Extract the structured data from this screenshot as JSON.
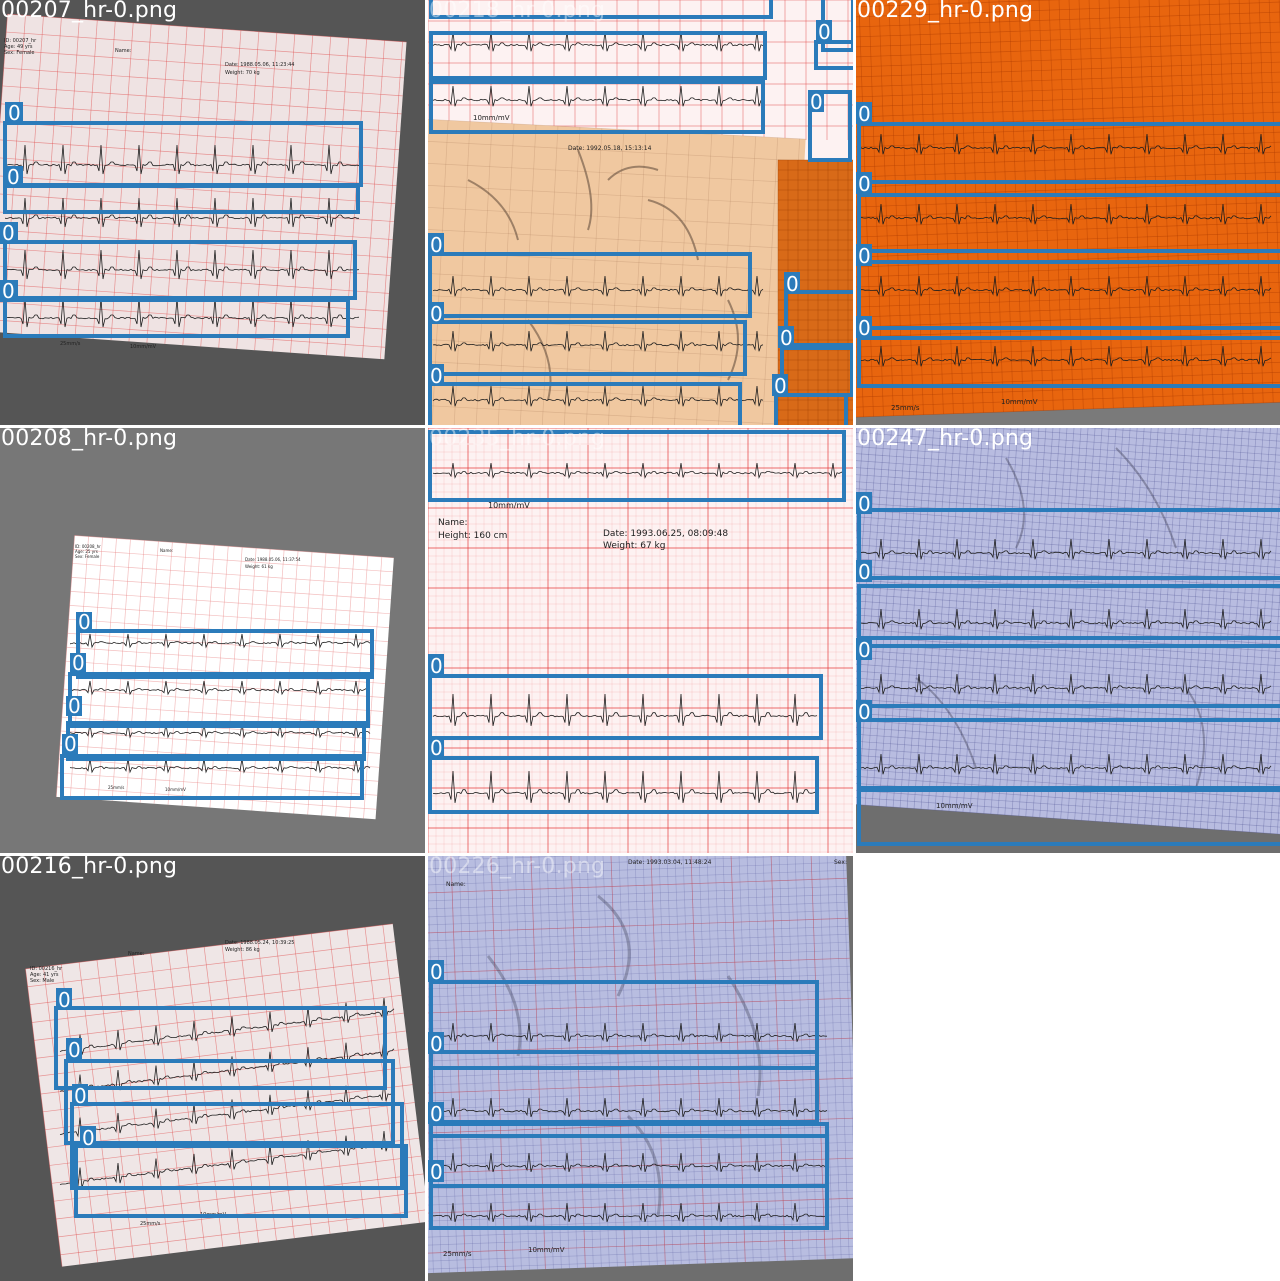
{
  "tiles": [
    {
      "filename": "00207_hr-0.png",
      "header": [
        "ID: 00207_hr",
        "Age: 49 yrs",
        "Sex: Female"
      ],
      "name_label": "Name:",
      "date": "Date: 1988.05.06, 11:23:44",
      "weight": "Weight: 70 kg",
      "speed": "25mm/s",
      "gain": "10mm/mV",
      "box_label": "0"
    },
    {
      "filename": "00218_hr-0.png",
      "date": "Date: 1992.05.18, 15:13:14",
      "gain": "10mm/mV",
      "box_label": "0"
    },
    {
      "filename": "00229_hr-0.png",
      "speed": "25mm/s",
      "gain": "10mm/mV",
      "box_label": "0"
    },
    {
      "filename": "00208_hr-0.png",
      "header": [
        "ID: 00208_hr",
        "Age: 25 yrs",
        "Sex: Female"
      ],
      "name_label": "Name:",
      "date": "Date: 1988.05.06, 11:37:54",
      "weight": "Weight: 61 kg",
      "speed": "25mm/s",
      "gain": "10mm/mV",
      "box_label": "0"
    },
    {
      "filename": "00235_hr-0.png",
      "name_label": "Name:",
      "height": "Height: 160 cm",
      "date": "Date: 1993.06.25, 08:09:48",
      "weight": "Weight: 67 kg",
      "gain": "10mm/mV",
      "box_label": "0"
    },
    {
      "filename": "00247_hr-0.png",
      "gain": "10mm/mV",
      "box_label": "0"
    },
    {
      "filename": "00216_hr-0.png",
      "header": [
        "ID: 00216_hr",
        "Age: 41 yrs",
        "Sex: Male"
      ],
      "name_label": "Name:",
      "date": "Date: 1988.05.24, 10:39:25",
      "weight": "Weight: 86 kg",
      "speed": "25mm/s",
      "gain": "10mm/mV",
      "box_label": "0"
    },
    {
      "filename": "00226_hr-0.png",
      "name_label": "Name:",
      "date": "Date: 1993.03.04, 11:48:24",
      "sex": "Sex:",
      "speed": "25mm/s",
      "gain": "10mm/mV",
      "box_label": "0"
    }
  ],
  "colors": {
    "box": "#2b7bba",
    "grid_red": "#e04040",
    "bg_dark": "#555555",
    "bg_mid": "#777777",
    "paper_orange": "#e86a10",
    "paper_blue": "#b8bde0",
    "paper_beige": "#f2c9a0"
  }
}
